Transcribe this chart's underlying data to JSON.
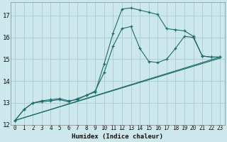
{
  "xlabel": "Humidex (Indice chaleur)",
  "bg_color": "#cce8ec",
  "grid_color": "#aacccc",
  "line_color": "#1e6b6b",
  "xlim": [
    -0.5,
    23.5
  ],
  "ylim": [
    12,
    17.6
  ],
  "yticks": [
    12,
    13,
    14,
    15,
    16,
    17
  ],
  "xticks": [
    0,
    1,
    2,
    3,
    4,
    5,
    6,
    7,
    8,
    9,
    10,
    11,
    12,
    13,
    14,
    15,
    16,
    17,
    18,
    19,
    20,
    21,
    22,
    23
  ],
  "line1": {
    "x": [
      0,
      1,
      2,
      3,
      4,
      5,
      6,
      7,
      8,
      9,
      10,
      11,
      12,
      13,
      14,
      15,
      16,
      17,
      18,
      19,
      20,
      21,
      22,
      23
    ],
    "y": [
      12.2,
      12.7,
      13.0,
      13.1,
      13.15,
      13.2,
      13.1,
      13.15,
      13.35,
      13.55,
      14.4,
      15.6,
      16.4,
      16.5,
      15.5,
      14.9,
      14.85,
      15.0,
      15.5,
      16.05,
      16.0,
      15.15,
      15.1,
      15.1
    ]
  },
  "line2": {
    "x": [
      0,
      1,
      2,
      3,
      4,
      5,
      6,
      7,
      8,
      9,
      10,
      11,
      12,
      13,
      14,
      15,
      16,
      17,
      18,
      19,
      20,
      21,
      22,
      23
    ],
    "y": [
      12.2,
      12.7,
      13.0,
      13.05,
      13.1,
      13.15,
      13.05,
      13.2,
      13.35,
      13.5,
      14.8,
      16.2,
      17.3,
      17.35,
      17.25,
      17.15,
      17.05,
      16.4,
      16.35,
      16.3,
      16.05,
      15.15,
      15.1,
      15.1
    ]
  },
  "line3_x": [
    0,
    23
  ],
  "line3_y": [
    12.2,
    15.1
  ],
  "line4_x": [
    0,
    23
  ],
  "line4_y": [
    12.2,
    15.05
  ]
}
